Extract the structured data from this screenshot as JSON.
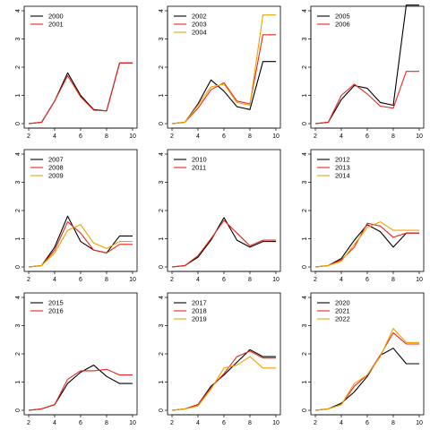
{
  "colors": {
    "black": "#000000",
    "red": "#e8261c",
    "orange": "#f0a000",
    "axis": "#000000",
    "background": "#ffffff"
  },
  "chart_data": [
    {
      "type": "line",
      "title": "",
      "xlabel": "",
      "ylabel": "",
      "xlim": [
        2,
        10
      ],
      "ylim": [
        0,
        4
      ],
      "x_ticks": [
        2,
        4,
        6,
        8,
        10
      ],
      "y_ticks": [
        0,
        1,
        2,
        3,
        4
      ],
      "grid": false,
      "legend_position": "top-left",
      "x": [
        2,
        3,
        4,
        5,
        6,
        7,
        8,
        9,
        10
      ],
      "series": [
        {
          "name": "2000",
          "color": "black",
          "values": [
            0,
            0.05,
            0.8,
            1.8,
            1.0,
            0.5,
            0.45,
            2.15,
            2.15
          ]
        },
        {
          "name": "2001",
          "color": "red",
          "values": [
            0,
            0.05,
            0.8,
            1.7,
            0.95,
            0.48,
            0.45,
            2.15,
            2.15
          ]
        }
      ]
    },
    {
      "type": "line",
      "title": "",
      "xlabel": "",
      "ylabel": "",
      "xlim": [
        2,
        10
      ],
      "ylim": [
        0,
        4
      ],
      "x_ticks": [
        2,
        4,
        6,
        8,
        10
      ],
      "y_ticks": [
        0,
        1,
        2,
        3,
        4
      ],
      "grid": false,
      "legend_position": "top-left",
      "x": [
        2,
        3,
        4,
        5,
        6,
        7,
        8,
        9,
        10
      ],
      "series": [
        {
          "name": "2002",
          "color": "black",
          "values": [
            0,
            0.05,
            0.7,
            1.55,
            1.15,
            0.6,
            0.5,
            2.2,
            2.2
          ]
        },
        {
          "name": "2003",
          "color": "red",
          "values": [
            0,
            0.05,
            0.55,
            1.2,
            1.45,
            0.8,
            0.7,
            3.15,
            3.15
          ]
        },
        {
          "name": "2004",
          "color": "orange",
          "values": [
            0,
            0.05,
            0.65,
            1.3,
            1.4,
            0.75,
            0.65,
            3.85,
            3.85
          ]
        }
      ]
    },
    {
      "type": "line",
      "title": "",
      "xlabel": "",
      "ylabel": "",
      "xlim": [
        2,
        10
      ],
      "ylim": [
        0,
        4
      ],
      "x_ticks": [
        2,
        4,
        6,
        8,
        10
      ],
      "y_ticks": [
        0,
        1,
        2,
        3,
        4
      ],
      "grid": false,
      "legend_position": "top-left",
      "x": [
        2,
        3,
        4,
        5,
        6,
        7,
        8,
        9,
        10
      ],
      "series": [
        {
          "name": "2005",
          "color": "black",
          "values": [
            0,
            0.05,
            0.85,
            1.35,
            1.25,
            0.75,
            0.65,
            4.2,
            4.2
          ]
        },
        {
          "name": "2006",
          "color": "red",
          "values": [
            0,
            0.05,
            1.0,
            1.4,
            1.05,
            0.62,
            0.55,
            1.85,
            1.85
          ]
        }
      ]
    },
    {
      "type": "line",
      "title": "",
      "xlabel": "",
      "ylabel": "",
      "xlim": [
        2,
        10
      ],
      "ylim": [
        0,
        4
      ],
      "x_ticks": [
        2,
        4,
        6,
        8,
        10
      ],
      "y_ticks": [
        0,
        1,
        2,
        3,
        4
      ],
      "grid": false,
      "legend_position": "top-left",
      "x": [
        2,
        3,
        4,
        5,
        6,
        7,
        8,
        9,
        10
      ],
      "series": [
        {
          "name": "2007",
          "color": "black",
          "values": [
            0,
            0.05,
            0.7,
            1.8,
            0.9,
            0.6,
            0.5,
            1.1,
            1.1
          ]
        },
        {
          "name": "2008",
          "color": "red",
          "values": [
            0,
            0.05,
            0.6,
            1.6,
            1.2,
            0.6,
            0.5,
            0.8,
            0.8
          ]
        },
        {
          "name": "2009",
          "color": "orange",
          "values": [
            0,
            0.05,
            0.5,
            1.3,
            1.5,
            0.85,
            0.65,
            0.9,
            0.9
          ]
        }
      ]
    },
    {
      "type": "line",
      "title": "",
      "xlabel": "",
      "ylabel": "",
      "xlim": [
        2,
        10
      ],
      "ylim": [
        0,
        4
      ],
      "x_ticks": [
        2,
        4,
        6,
        8,
        10
      ],
      "y_ticks": [
        0,
        1,
        2,
        3,
        4
      ],
      "grid": false,
      "legend_position": "top-left",
      "x": [
        2,
        3,
        4,
        5,
        6,
        7,
        8,
        9,
        10
      ],
      "series": [
        {
          "name": "2010",
          "color": "black",
          "values": [
            0,
            0.05,
            0.35,
            0.95,
            1.75,
            0.95,
            0.7,
            0.9,
            0.9
          ]
        },
        {
          "name": "2011",
          "color": "red",
          "values": [
            0,
            0.05,
            0.4,
            1.0,
            1.65,
            1.2,
            0.75,
            0.95,
            0.95
          ]
        }
      ]
    },
    {
      "type": "line",
      "title": "",
      "xlabel": "",
      "ylabel": "",
      "xlim": [
        2,
        10
      ],
      "ylim": [
        0,
        4
      ],
      "x_ticks": [
        2,
        4,
        6,
        8,
        10
      ],
      "y_ticks": [
        0,
        1,
        2,
        3,
        4
      ],
      "grid": false,
      "legend_position": "top-left",
      "x": [
        2,
        3,
        4,
        5,
        6,
        7,
        8,
        9,
        10
      ],
      "series": [
        {
          "name": "2012",
          "color": "black",
          "values": [
            0,
            0.05,
            0.3,
            0.95,
            1.5,
            1.25,
            0.7,
            1.2,
            1.2
          ]
        },
        {
          "name": "2013",
          "color": "red",
          "values": [
            0,
            0.05,
            0.25,
            0.7,
            1.55,
            1.45,
            1.05,
            1.2,
            1.2
          ]
        },
        {
          "name": "2014",
          "color": "orange",
          "values": [
            0,
            0.05,
            0.2,
            0.8,
            1.4,
            1.6,
            1.3,
            1.3,
            1.3
          ]
        }
      ]
    },
    {
      "type": "line",
      "title": "",
      "xlabel": "",
      "ylabel": "",
      "xlim": [
        2,
        10
      ],
      "ylim": [
        0,
        4
      ],
      "x_ticks": [
        2,
        4,
        6,
        8,
        10
      ],
      "y_ticks": [
        0,
        1,
        2,
        3,
        4
      ],
      "grid": false,
      "legend_position": "top-left",
      "x": [
        2,
        3,
        4,
        5,
        6,
        7,
        8,
        9,
        10
      ],
      "series": [
        {
          "name": "2015",
          "color": "black",
          "values": [
            0,
            0.05,
            0.2,
            0.95,
            1.35,
            1.6,
            1.2,
            0.95,
            0.95
          ]
        },
        {
          "name": "2016",
          "color": "red",
          "values": [
            0,
            0.05,
            0.2,
            1.1,
            1.4,
            1.4,
            1.45,
            1.25,
            1.25
          ]
        }
      ]
    },
    {
      "type": "line",
      "title": "",
      "xlabel": "",
      "ylabel": "",
      "xlim": [
        2,
        10
      ],
      "ylim": [
        0,
        4
      ],
      "x_ticks": [
        2,
        4,
        6,
        8,
        10
      ],
      "y_ticks": [
        0,
        1,
        2,
        3,
        4
      ],
      "grid": false,
      "legend_position": "top-left",
      "x": [
        2,
        3,
        4,
        5,
        6,
        7,
        8,
        9,
        10
      ],
      "series": [
        {
          "name": "2017",
          "color": "black",
          "values": [
            0,
            0.05,
            0.2,
            0.85,
            1.25,
            1.7,
            2.15,
            1.9,
            1.9
          ]
        },
        {
          "name": "2018",
          "color": "red",
          "values": [
            0,
            0.05,
            0.2,
            0.8,
            1.3,
            1.9,
            2.1,
            1.85,
            1.85
          ]
        },
        {
          "name": "2019",
          "color": "orange",
          "values": [
            0,
            0.05,
            0.15,
            0.75,
            1.5,
            1.6,
            1.9,
            1.5,
            1.5
          ]
        }
      ]
    },
    {
      "type": "line",
      "title": "",
      "xlabel": "",
      "ylabel": "",
      "xlim": [
        2,
        10
      ],
      "ylim": [
        0,
        4
      ],
      "x_ticks": [
        2,
        4,
        6,
        8,
        10
      ],
      "y_ticks": [
        0,
        1,
        2,
        3,
        4
      ],
      "grid": false,
      "legend_position": "top-left",
      "x": [
        2,
        3,
        4,
        5,
        6,
        7,
        8,
        9,
        10
      ],
      "series": [
        {
          "name": "2020",
          "color": "black",
          "values": [
            0,
            0.05,
            0.25,
            0.65,
            1.2,
            1.95,
            2.2,
            1.65,
            1.65
          ]
        },
        {
          "name": "2021",
          "color": "red",
          "values": [
            0,
            0.05,
            0.2,
            0.85,
            1.25,
            1.95,
            2.75,
            2.35,
            2.35
          ]
        },
        {
          "name": "2022",
          "color": "orange",
          "values": [
            0,
            0.05,
            0.2,
            0.95,
            1.25,
            1.9,
            2.9,
            2.4,
            2.4
          ]
        }
      ]
    }
  ]
}
